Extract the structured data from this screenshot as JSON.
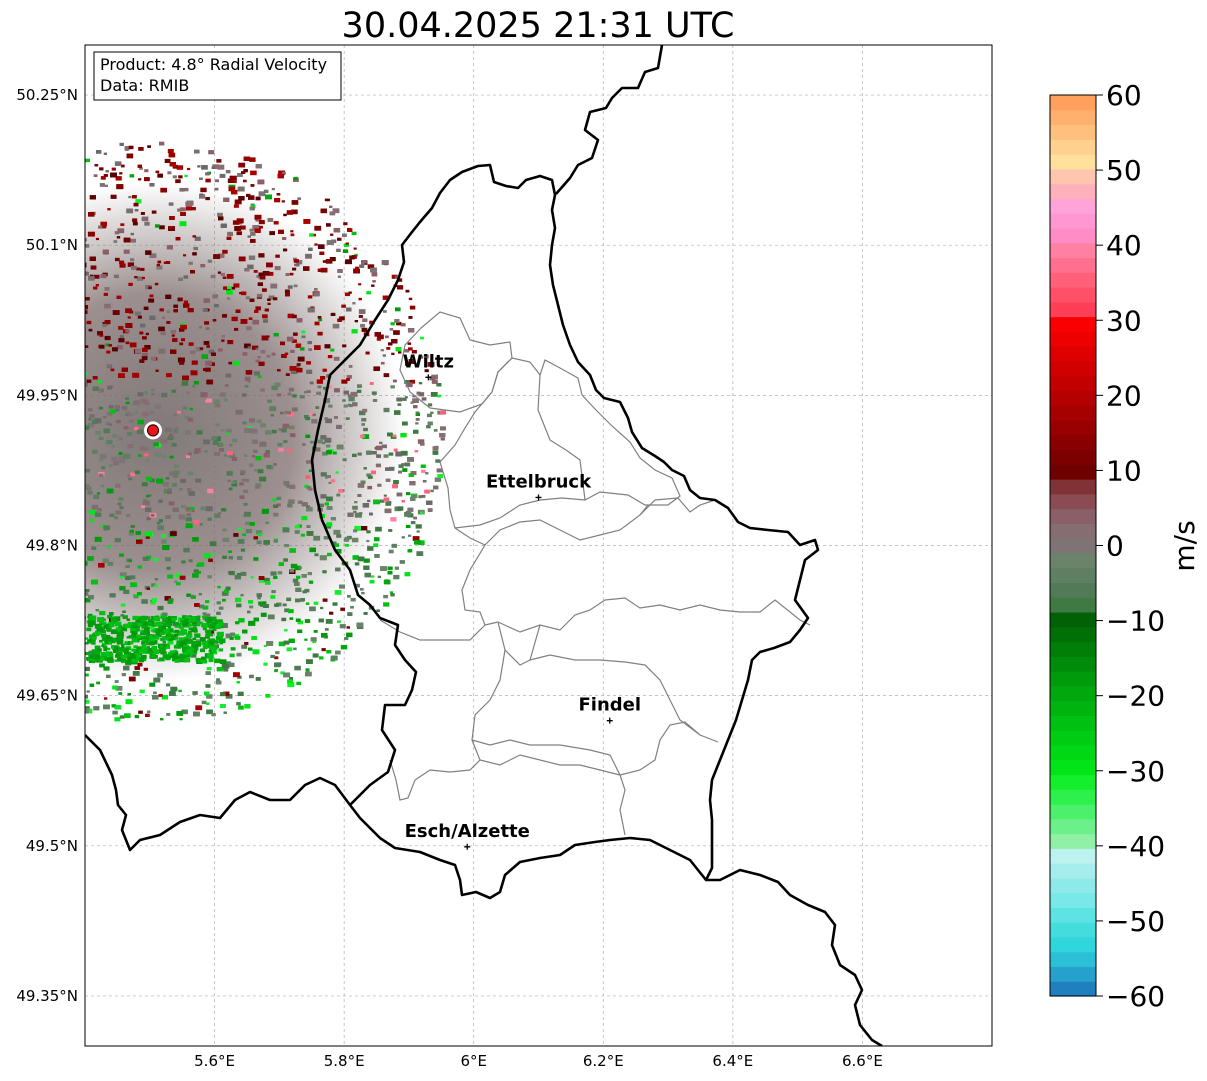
{
  "title": "30.04.2025 21:31 UTC",
  "info_box": {
    "product_line": "Product: 4.8° Radial Velocity",
    "data_line": "Data: RMIB"
  },
  "map": {
    "lon_range": [
      5.4,
      6.8
    ],
    "lat_range": [
      49.3,
      50.3
    ],
    "lon_ticks": [
      {
        "value": 5.6,
        "label": "5.6°E"
      },
      {
        "value": 5.8,
        "label": "5.8°E"
      },
      {
        "value": 6.0,
        "label": "6°E"
      },
      {
        "value": 6.2,
        "label": "6.2°E"
      },
      {
        "value": 6.4,
        "label": "6.4°E"
      },
      {
        "value": 6.6,
        "label": "6.6°E"
      }
    ],
    "lat_ticks": [
      {
        "value": 50.25,
        "label": "50.25°N"
      },
      {
        "value": 50.1,
        "label": "50.1°N"
      },
      {
        "value": 49.95,
        "label": "49.95°N"
      },
      {
        "value": 49.8,
        "label": "49.8°N"
      },
      {
        "value": 49.65,
        "label": "49.65°N"
      },
      {
        "value": 49.5,
        "label": "49.5°N"
      },
      {
        "value": 49.35,
        "label": "49.35°N"
      }
    ],
    "cities": [
      {
        "name": "Wiltz",
        "lon": 5.93,
        "lat": 49.968
      },
      {
        "name": "Ettelbruck",
        "lon": 6.1,
        "lat": 49.848
      },
      {
        "name": "Findel",
        "lon": 6.21,
        "lat": 49.625
      },
      {
        "name": "Esch/Alzette",
        "lon": 5.99,
        "lat": 49.499
      }
    ],
    "radar_site": {
      "lon": 5.505,
      "lat": 49.915,
      "color": "#e8171a"
    }
  },
  "colorbar": {
    "label": "m/s",
    "min": -60,
    "max": 60,
    "ticks": [
      {
        "value": 60,
        "label": "60"
      },
      {
        "value": 50,
        "label": "50"
      },
      {
        "value": 40,
        "label": "40"
      },
      {
        "value": 30,
        "label": "30"
      },
      {
        "value": 20,
        "label": "20"
      },
      {
        "value": 10,
        "label": "10"
      },
      {
        "value": 0,
        "label": "0"
      },
      {
        "value": -10,
        "label": "−10"
      },
      {
        "value": -20,
        "label": "−20"
      },
      {
        "value": -30,
        "label": "−30"
      },
      {
        "value": -40,
        "label": "−40"
      },
      {
        "value": -50,
        "label": "−50"
      },
      {
        "value": -60,
        "label": "−60"
      }
    ],
    "colors": [
      "#1f7fbf",
      "#26a0cc",
      "#2cc0d6",
      "#2fd6dc",
      "#44dddd",
      "#5ee3e3",
      "#78e8e8",
      "#8eeaea",
      "#a6eeee",
      "#bcf2f0",
      "#8ff0a6",
      "#6cf08a",
      "#4cf06a",
      "#2ef04a",
      "#14ee2c",
      "#02e418",
      "#00d816",
      "#00cc14",
      "#00c012",
      "#00b410",
      "#00a80e",
      "#009a0c",
      "#008c0a",
      "#007e08",
      "#007006",
      "#006204",
      "#3f7a44",
      "#527a56",
      "#5f7f62",
      "#6a836a",
      "#7d7575",
      "#856d72",
      "#8a5f68",
      "#8a4b52",
      "#7f3336",
      "#6e0000",
      "#7c0000",
      "#8a0000",
      "#980000",
      "#a60000",
      "#b40000",
      "#c20000",
      "#d00000",
      "#de0000",
      "#ec0000",
      "#fa0000",
      "#ff3f55",
      "#ff5068",
      "#ff607a",
      "#ff708e",
      "#ff80a0",
      "#ff8dc5",
      "#ff97d3",
      "#ffa4d8",
      "#ffb1bb",
      "#ffc6ad",
      "#ffe19d",
      "#ffd08e",
      "#ffc07e",
      "#ffb06e",
      "#ffa05e"
    ]
  }
}
